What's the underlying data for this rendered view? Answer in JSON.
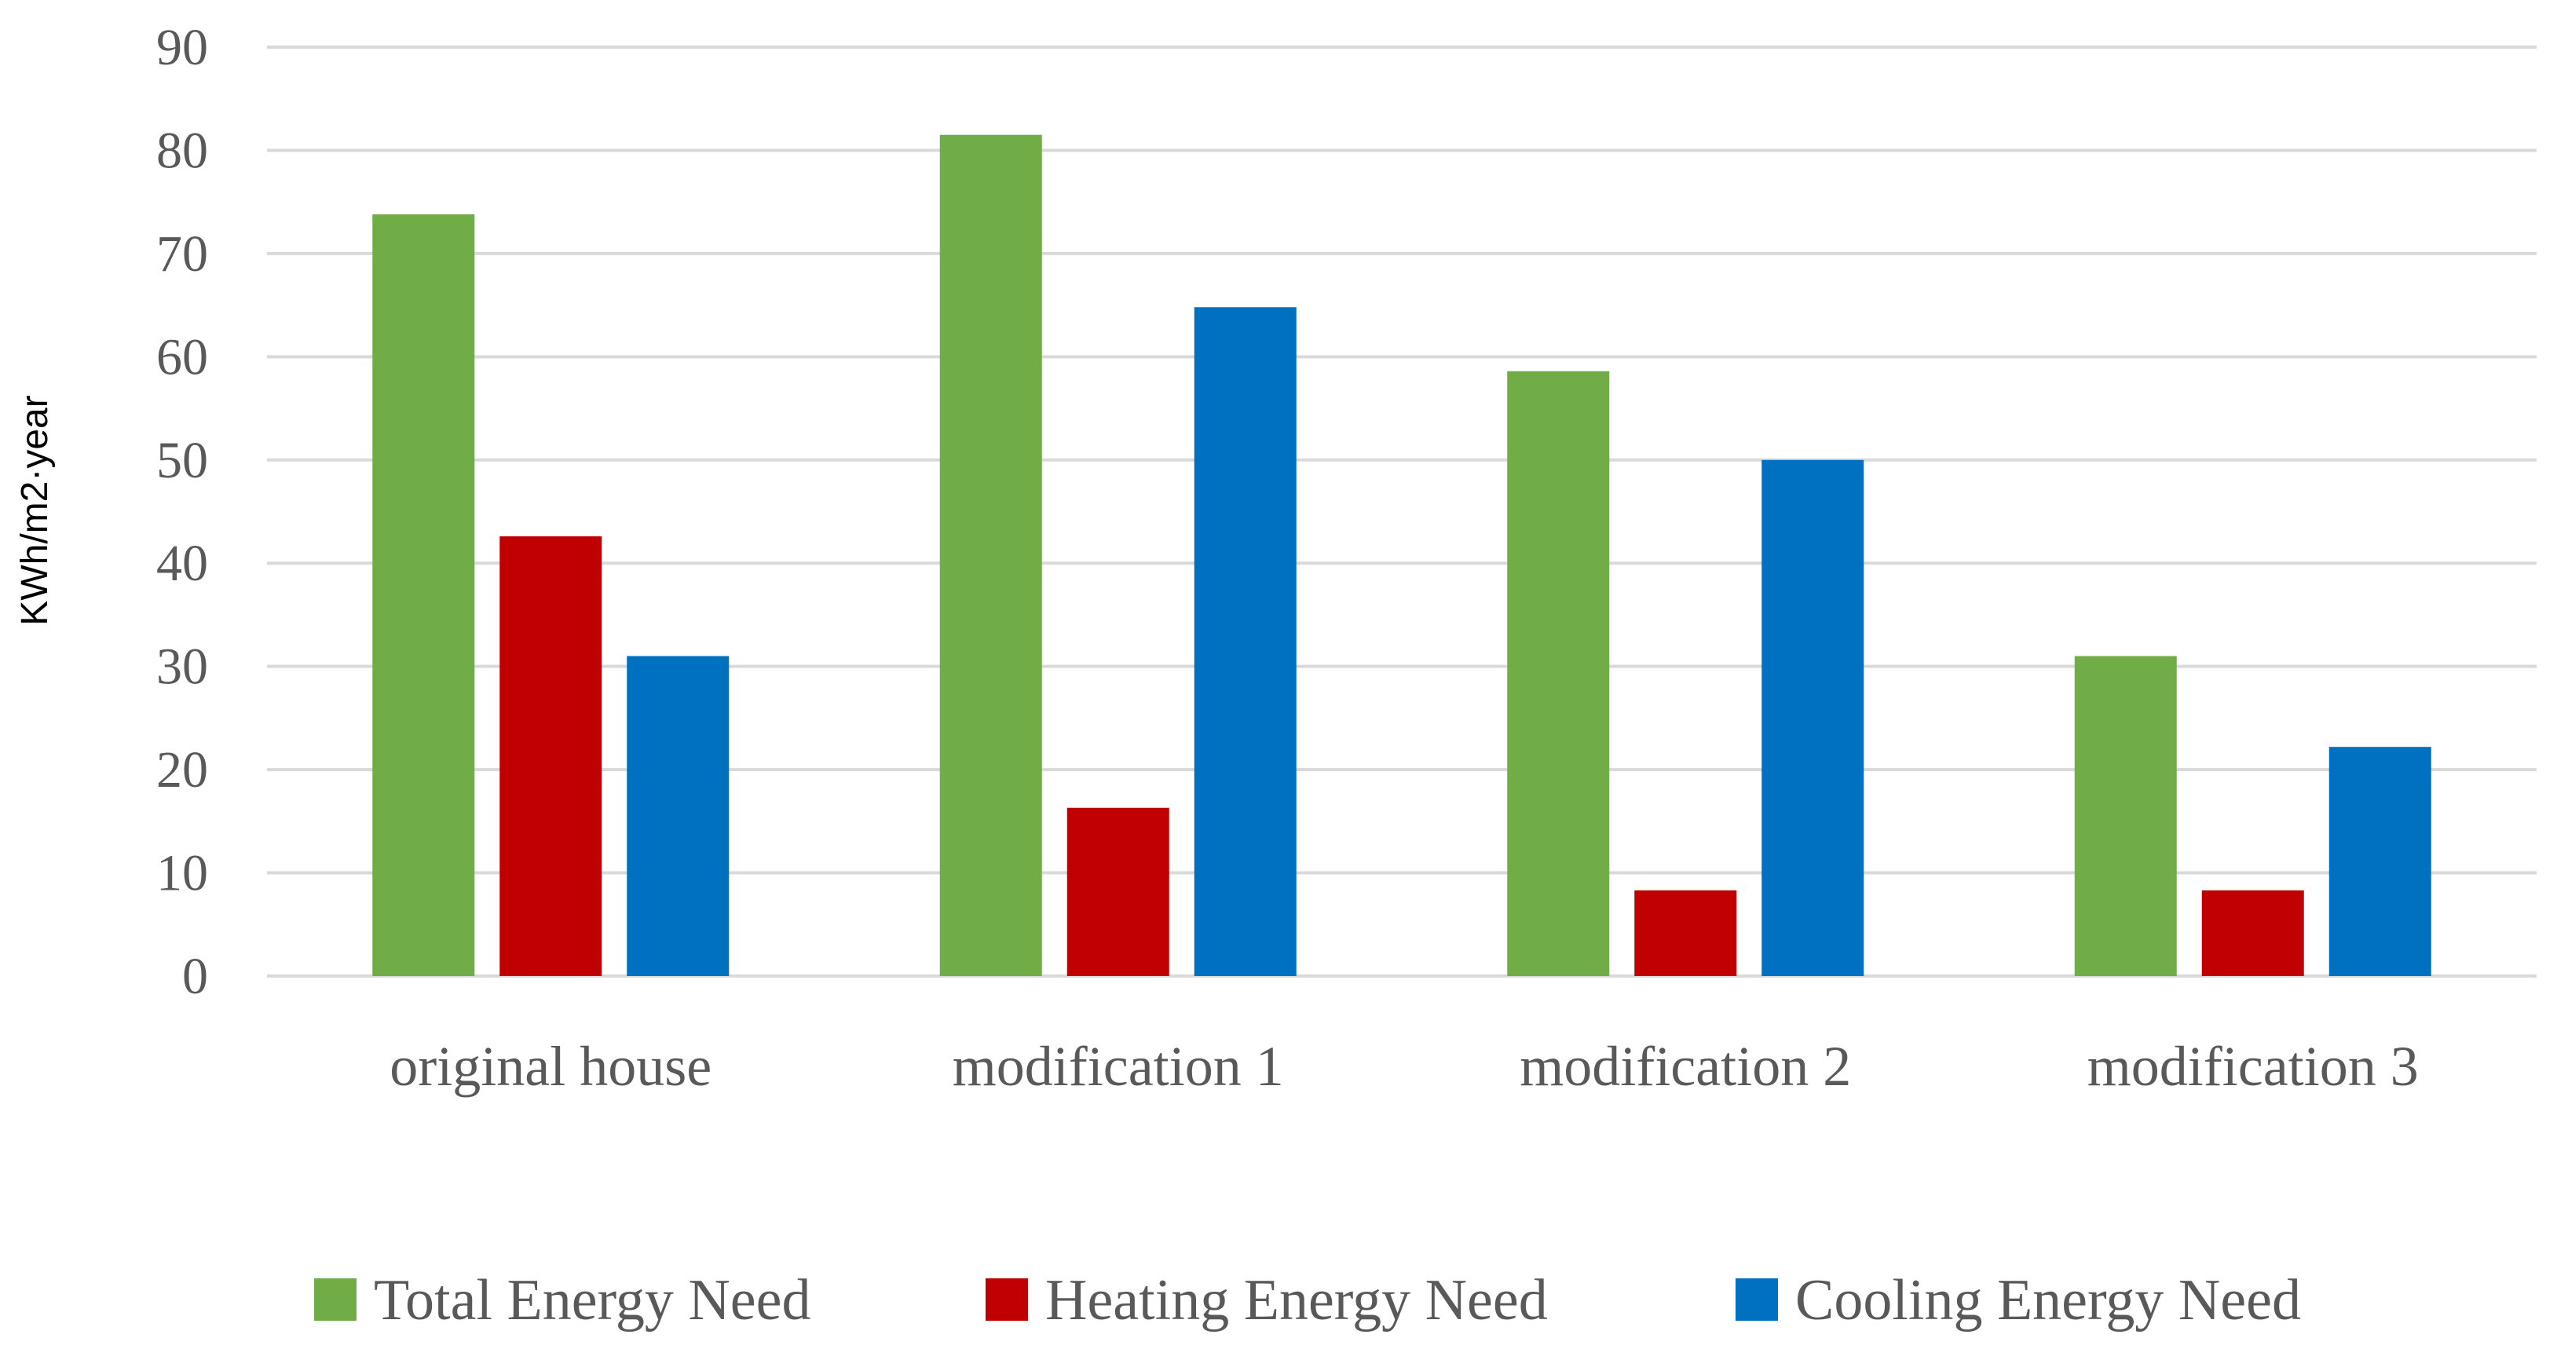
{
  "chart_data": {
    "type": "bar",
    "title": "",
    "xlabel": "",
    "ylabel": "KWh/m2·year",
    "ylim": [
      0,
      90
    ],
    "yticks": [
      0,
      10,
      20,
      30,
      40,
      50,
      60,
      70,
      80,
      90
    ],
    "grid": true,
    "legend_position": "bottom",
    "categories": [
      "original house",
      "modification 1",
      "modification 2",
      "modification 3"
    ],
    "series": [
      {
        "name": "Total Energy Need",
        "color": "#70ad47",
        "values": [
          73.8,
          81.5,
          58.6,
          31.0
        ]
      },
      {
        "name": "Heating Energy Need",
        "color": "#c00000",
        "values": [
          42.6,
          16.3,
          8.3,
          8.3
        ]
      },
      {
        "name": "Cooling Energy Need",
        "color": "#0070c0",
        "values": [
          31.0,
          64.8,
          50.0,
          22.2
        ]
      }
    ]
  }
}
